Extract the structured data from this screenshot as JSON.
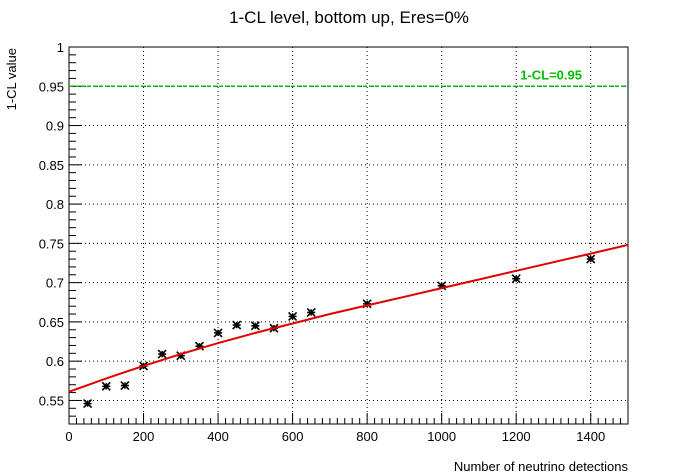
{
  "chart_data": {
    "type": "scatter",
    "title": "1-CL level, bottom up, Eres=0%",
    "xlabel": "Number of neutrino detections",
    "ylabel": "1-CL value",
    "xlim": [
      0,
      1500
    ],
    "ylim": [
      0.52,
      1.0
    ],
    "x_ticks": [
      0,
      200,
      400,
      600,
      800,
      1000,
      1200,
      1400
    ],
    "y_ticks": [
      0.55,
      0.6,
      0.65,
      0.7,
      0.75,
      0.8,
      0.85,
      0.9,
      0.95,
      1
    ],
    "x_tick_labels": [
      "0",
      "200",
      "400",
      "600",
      "800",
      "1000",
      "1200",
      "1400"
    ],
    "y_tick_labels": [
      "0.55",
      "0.6",
      "0.65",
      "0.7",
      "0.75",
      "0.8",
      "0.85",
      "0.9",
      "0.95",
      "1"
    ],
    "grid": true,
    "series": [
      {
        "type": "scatter",
        "color": "#000000",
        "x": [
          50,
          100,
          150,
          200,
          250,
          300,
          350,
          400,
          450,
          500,
          550,
          600,
          650,
          800,
          1000,
          1200,
          1400
        ],
        "y": [
          0.546,
          0.568,
          0.569,
          0.594,
          0.609,
          0.607,
          0.619,
          0.636,
          0.646,
          0.645,
          0.642,
          0.657,
          0.662,
          0.673,
          0.696,
          0.705,
          0.73
        ],
        "err": [
          0.004,
          0.004,
          0.004,
          0.004,
          0.004,
          0.004,
          0.004,
          0.004,
          0.004,
          0.004,
          0.004,
          0.004,
          0.004,
          0.004,
          0.004,
          0.004,
          0.004
        ]
      },
      {
        "type": "line",
        "color": "#e00000",
        "x": [
          0,
          100,
          200,
          300,
          400,
          500,
          600,
          700,
          800,
          900,
          1000,
          1100,
          1200,
          1300,
          1400,
          1500
        ],
        "y": [
          0.561,
          0.578,
          0.594,
          0.609,
          0.623,
          0.636,
          0.648,
          0.66,
          0.671,
          0.682,
          0.693,
          0.704,
          0.715,
          0.726,
          0.737,
          0.748
        ]
      },
      {
        "type": "hline",
        "color": "#00c000",
        "y": 0.95
      }
    ],
    "annotations": [
      {
        "text": "1-CL=0.95",
        "x": 1200,
        "y": 0.95,
        "color": "#00c000"
      }
    ]
  }
}
